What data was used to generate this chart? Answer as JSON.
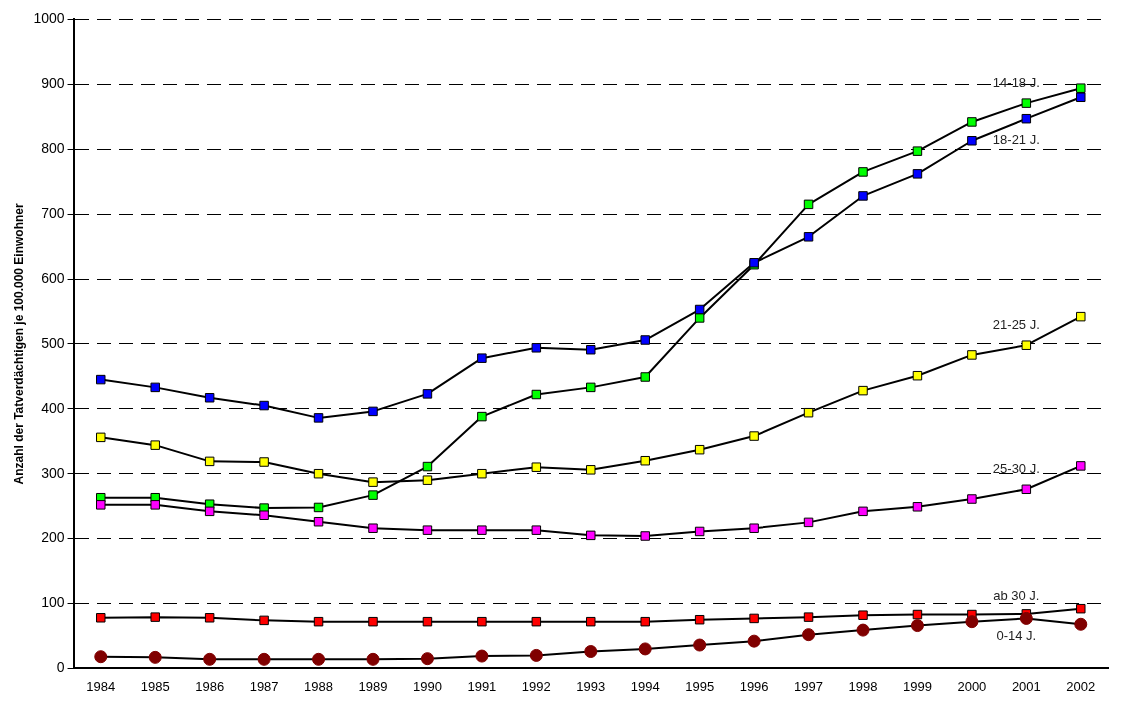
{
  "chart_data": {
    "type": "line",
    "ylabel": "Anzahl der Tatverdächtigen je 100.000 Einwohner",
    "categories": [
      "1984",
      "1985",
      "1986",
      "1987",
      "1988",
      "1989",
      "1990",
      "1991",
      "1992",
      "1993",
      "1994",
      "1995",
      "1996",
      "1997",
      "1998",
      "1999",
      "2000",
      "2001",
      "2002"
    ],
    "series": [
      {
        "name": "14-18 J.",
        "color": "#00ff00",
        "marker": "square",
        "values": [
          263,
          263,
          253,
          247,
          248,
          267,
          311,
          388,
          422,
          433,
          449,
          540,
          622,
          715,
          765,
          797,
          842,
          871,
          894
        ]
      },
      {
        "name": "18-21 J.",
        "color": "#0000ff",
        "marker": "square",
        "values": [
          445,
          433,
          417,
          405,
          386,
          396,
          423,
          478,
          494,
          491,
          506,
          553,
          625,
          665,
          728,
          762,
          813,
          847,
          880
        ]
      },
      {
        "name": "21-25 J.",
        "color": "#ffff00",
        "marker": "square",
        "values": [
          356,
          344,
          319,
          318,
          300,
          287,
          290,
          300,
          310,
          306,
          320,
          337,
          358,
          394,
          428,
          451,
          483,
          498,
          542
        ]
      },
      {
        "name": "25-30 J.",
        "color": "#ff00ff",
        "marker": "square",
        "values": [
          252,
          252,
          242,
          236,
          226,
          216,
          213,
          213,
          213,
          205,
          204,
          211,
          216,
          225,
          242,
          249,
          261,
          276,
          312
        ]
      },
      {
        "name": "ab 30 J.",
        "color": "#ff0000",
        "marker": "square",
        "values": [
          78,
          79,
          78,
          74,
          72,
          72,
          72,
          72,
          72,
          72,
          72,
          75,
          77,
          79,
          82,
          83,
          83,
          84,
          92
        ]
      },
      {
        "name": "0-14 J.",
        "color": "#800000",
        "marker": "circle",
        "values": [
          18,
          17,
          14,
          14,
          14,
          14,
          15,
          19,
          20,
          26,
          30,
          36,
          42,
          52,
          59,
          66,
          72,
          77,
          68
        ]
      }
    ],
    "ylim": [
      0,
      1000
    ],
    "yticks": [
      0,
      100,
      200,
      300,
      400,
      500,
      600,
      700,
      800,
      900,
      1000
    ],
    "grid": "y",
    "legend": false,
    "line_style": "solid"
  }
}
